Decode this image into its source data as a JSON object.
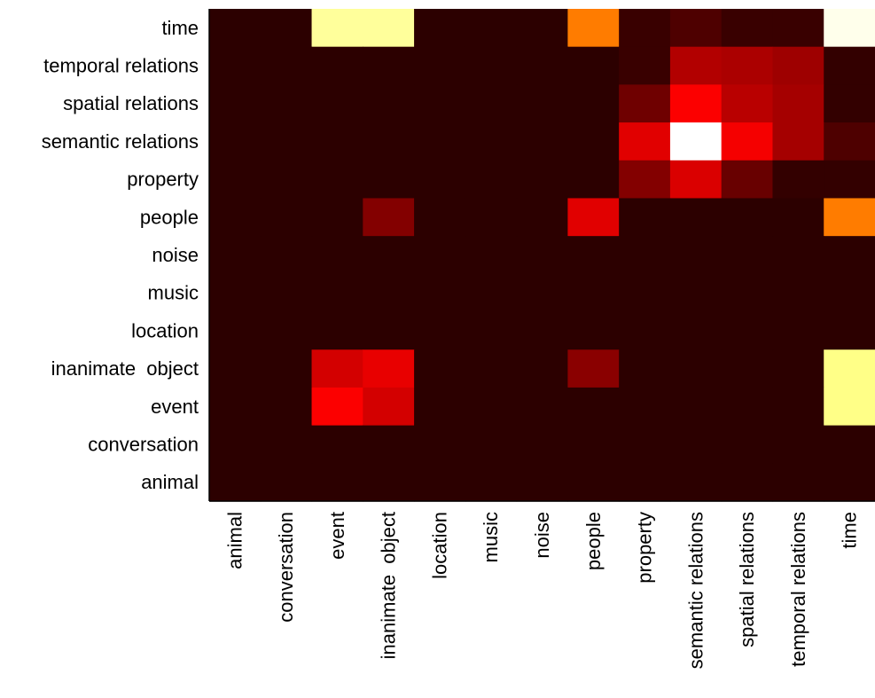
{
  "chart_data": {
    "type": "heatmap",
    "title": "",
    "xlabel": "",
    "ylabel": "",
    "colormap": "hot",
    "value_range": [
      0,
      1
    ],
    "x_categories": [
      "animal",
      "conversation",
      "event",
      "inanimate  object",
      "location",
      "music",
      "noise",
      "people",
      "property",
      "semantic relations",
      "spatial relations",
      "temporal relations",
      "time"
    ],
    "y_categories": [
      "time",
      "temporal relations",
      "spatial relations",
      "semantic relations",
      "property",
      "people",
      "noise",
      "music",
      "location",
      "inanimate  object",
      "event",
      "conversation",
      "animal"
    ],
    "values": [
      [
        0.05,
        0.05,
        0.9,
        0.9,
        0.05,
        0.05,
        0.05,
        0.55,
        0.07,
        0.1,
        0.07,
        0.07,
        0.98
      ],
      [
        0.05,
        0.05,
        0.05,
        0.05,
        0.05,
        0.05,
        0.05,
        0.05,
        0.07,
        0.25,
        0.24,
        0.22,
        0.06
      ],
      [
        0.05,
        0.05,
        0.05,
        0.05,
        0.05,
        0.05,
        0.05,
        0.05,
        0.15,
        0.36,
        0.26,
        0.23,
        0.06
      ],
      [
        0.05,
        0.05,
        0.05,
        0.05,
        0.05,
        0.05,
        0.05,
        0.05,
        0.32,
        1.0,
        0.35,
        0.23,
        0.1
      ],
      [
        0.05,
        0.05,
        0.05,
        0.05,
        0.05,
        0.05,
        0.05,
        0.05,
        0.18,
        0.31,
        0.14,
        0.06,
        0.06
      ],
      [
        0.05,
        0.05,
        0.05,
        0.18,
        0.05,
        0.05,
        0.05,
        0.32,
        0.05,
        0.05,
        0.05,
        0.05,
        0.55
      ],
      [
        0.05,
        0.05,
        0.05,
        0.05,
        0.05,
        0.05,
        0.05,
        0.05,
        0.05,
        0.05,
        0.05,
        0.05,
        0.05
      ],
      [
        0.05,
        0.05,
        0.05,
        0.05,
        0.05,
        0.05,
        0.05,
        0.05,
        0.05,
        0.05,
        0.05,
        0.05,
        0.05
      ],
      [
        0.05,
        0.05,
        0.05,
        0.05,
        0.05,
        0.05,
        0.05,
        0.05,
        0.05,
        0.05,
        0.05,
        0.05,
        0.05
      ],
      [
        0.05,
        0.05,
        0.3,
        0.33,
        0.05,
        0.05,
        0.05,
        0.19,
        0.05,
        0.05,
        0.05,
        0.05,
        0.88
      ],
      [
        0.05,
        0.05,
        0.36,
        0.3,
        0.05,
        0.05,
        0.05,
        0.05,
        0.05,
        0.05,
        0.05,
        0.05,
        0.88
      ],
      [
        0.05,
        0.05,
        0.05,
        0.05,
        0.05,
        0.05,
        0.05,
        0.05,
        0.05,
        0.05,
        0.05,
        0.05,
        0.05
      ],
      [
        0.05,
        0.05,
        0.05,
        0.05,
        0.05,
        0.05,
        0.05,
        0.05,
        0.05,
        0.05,
        0.05,
        0.05,
        0.05
      ]
    ],
    "grid": false,
    "colorbar": false
  }
}
